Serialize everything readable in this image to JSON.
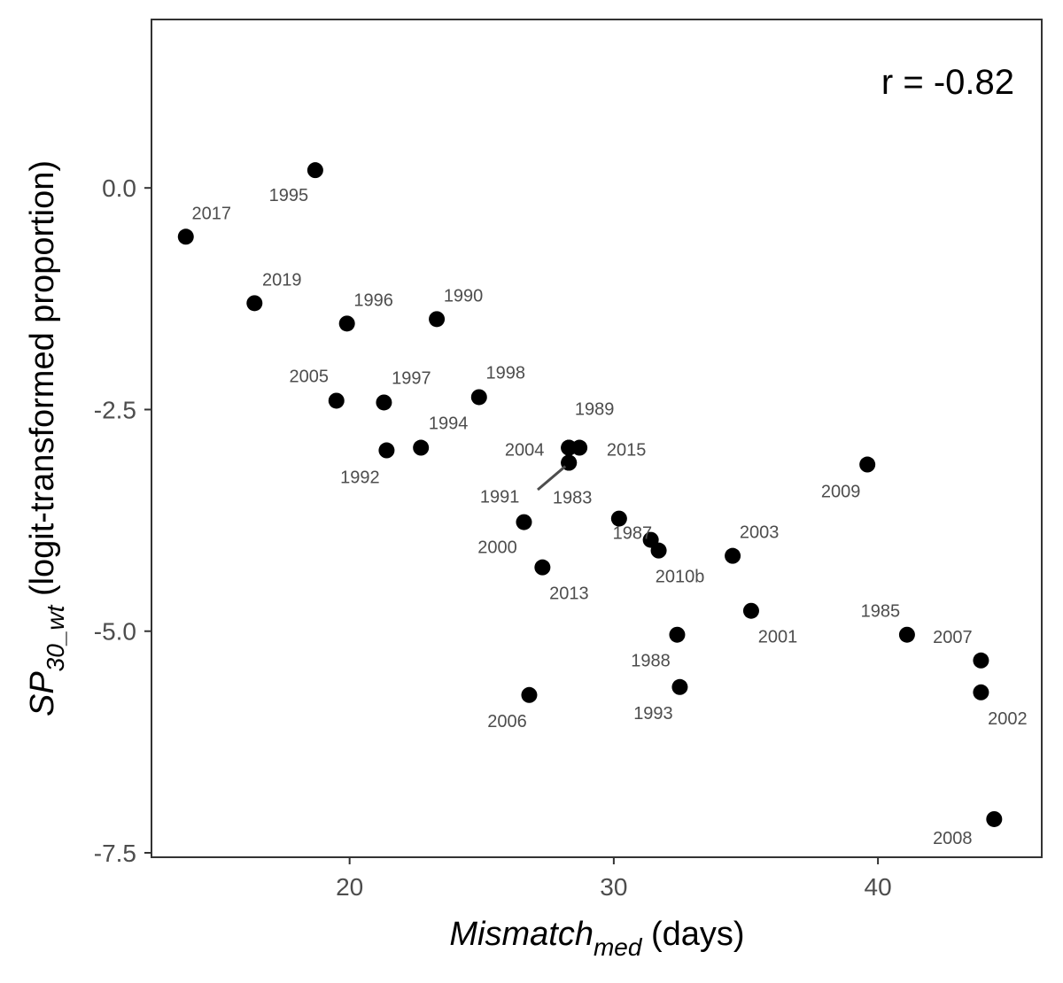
{
  "chart_data": {
    "type": "scatter",
    "xlabel": {
      "main": "Mismatch",
      "sub": "med",
      "rest": " (days)"
    },
    "ylabel": {
      "main": "SP",
      "sub": "30_wt",
      "rest": " (logit-transformed proportion)"
    },
    "annotation": "r = -0.82",
    "xlim": [
      12.5,
      46.2
    ],
    "ylim": [
      -7.55,
      1.9
    ],
    "x_ticks": [
      {
        "value": 20,
        "label": "20"
      },
      {
        "value": 30,
        "label": "30"
      },
      {
        "value": 40,
        "label": "40"
      }
    ],
    "y_ticks": [
      {
        "value": 0,
        "label": "0.0"
      },
      {
        "value": -2.5,
        "label": "-2.5"
      },
      {
        "value": -5,
        "label": "-5.0"
      },
      {
        "value": -7.5,
        "label": "-7.5"
      }
    ],
    "grid": false,
    "points": [
      {
        "label": "2017",
        "x": 13.8,
        "y": -0.55
      },
      {
        "label": "1995",
        "x": 18.7,
        "y": 0.2
      },
      {
        "label": "2019",
        "x": 16.4,
        "y": -1.3
      },
      {
        "label": "1996",
        "x": 19.9,
        "y": -1.53
      },
      {
        "label": "1990",
        "x": 23.3,
        "y": -1.48
      },
      {
        "label": "2005",
        "x": 19.5,
        "y": -2.4
      },
      {
        "label": "1997",
        "x": 21.3,
        "y": -2.42
      },
      {
        "label": "1998",
        "x": 24.9,
        "y": -2.36
      },
      {
        "label": "1992",
        "x": 21.4,
        "y": -2.96
      },
      {
        "label": "1994",
        "x": 22.7,
        "y": -2.93
      },
      {
        "label": "2004",
        "x": 28.3,
        "y": -2.93
      },
      {
        "label": "1989",
        "x": 28.7,
        "y": -2.93
      },
      {
        "label": "1991",
        "x": 28.3,
        "y": -3.1
      },
      {
        "label": "1983",
        "x": 28.3,
        "y": -3.1
      },
      {
        "label": "2015",
        "x": 28.3,
        "y": -2.93
      },
      {
        "label": "2009",
        "x": 39.6,
        "y": -3.12
      },
      {
        "label": "2000",
        "x": 26.6,
        "y": -3.77
      },
      {
        "label": "1987",
        "x": 30.2,
        "y": -3.73
      },
      {
        "label": "2010",
        "x": 31.4,
        "y": -3.97
      },
      {
        "label": "2010b",
        "x": 31.7,
        "y": -4.09
      },
      {
        "label": "2003",
        "x": 34.5,
        "y": -4.15
      },
      {
        "label": "2013",
        "x": 27.3,
        "y": -4.28
      },
      {
        "label": "2001",
        "x": 35.2,
        "y": -4.77
      },
      {
        "label": "1985",
        "x": 41.1,
        "y": -5.04
      },
      {
        "label": "1988",
        "x": 32.4,
        "y": -5.04
      },
      {
        "label": "2007",
        "x": 43.9,
        "y": -5.33
      },
      {
        "label": "1993",
        "x": 32.5,
        "y": -5.63
      },
      {
        "label": "2002",
        "x": 43.9,
        "y": -5.69
      },
      {
        "label": "2006",
        "x": 26.8,
        "y": -5.72
      },
      {
        "label": "2008",
        "x": 44.4,
        "y": -7.12
      }
    ]
  }
}
